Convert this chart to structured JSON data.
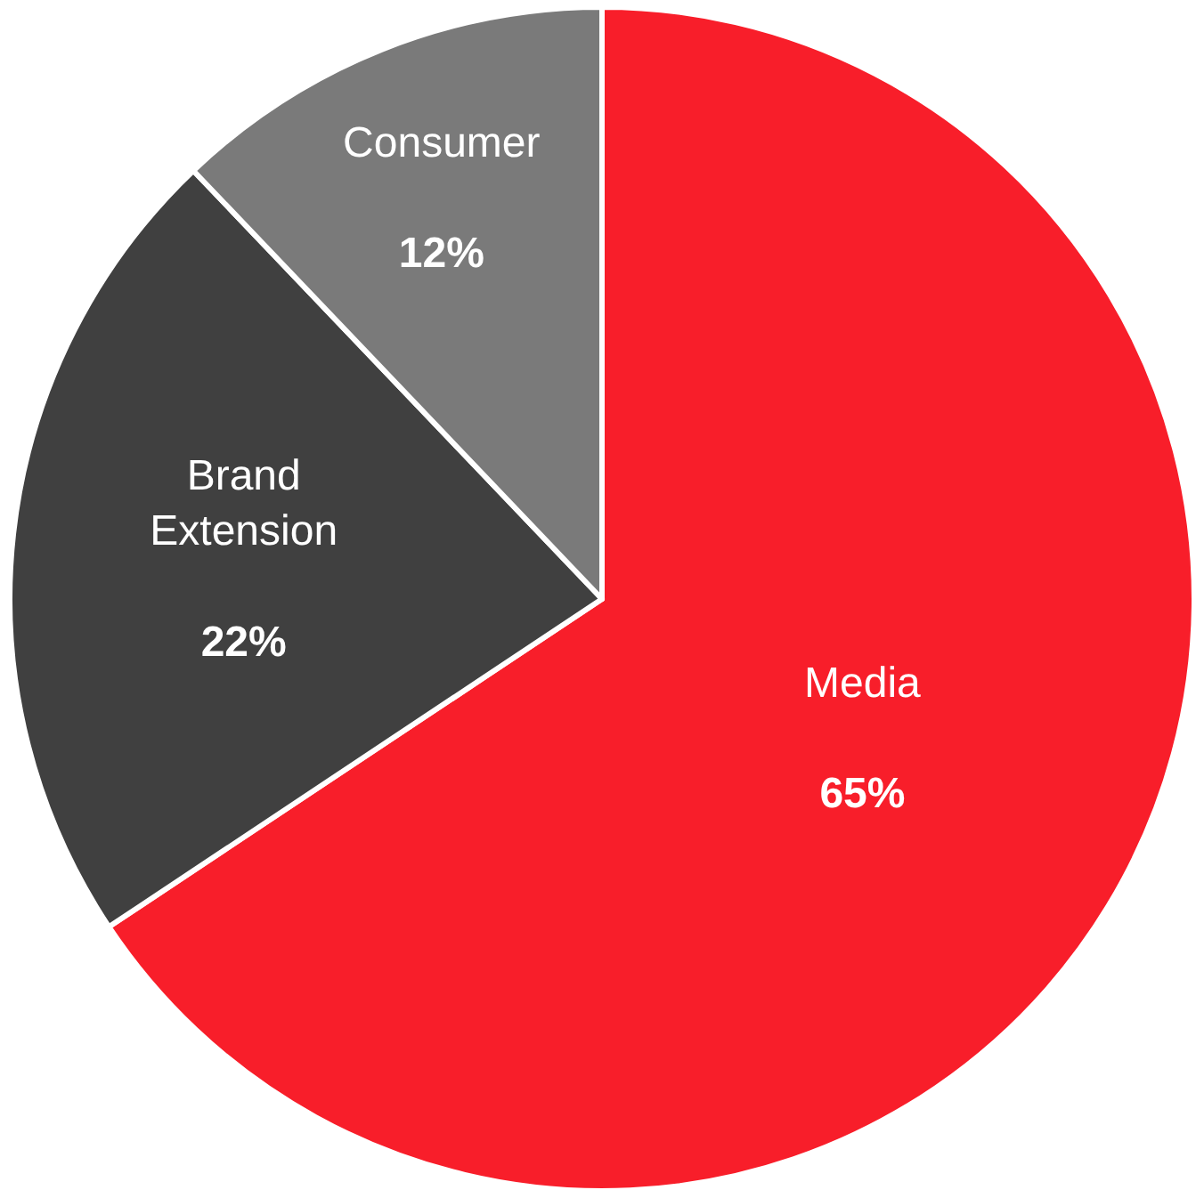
{
  "chart_data": {
    "type": "pie",
    "categories": [
      "Media",
      "Brand Extension",
      "Consumer"
    ],
    "values": [
      65,
      22,
      12
    ],
    "value_labels": [
      "65%",
      "22%",
      "12%"
    ],
    "colors": [
      "#f81e2a",
      "#404040",
      "#7a7a7a"
    ],
    "legend": false
  }
}
